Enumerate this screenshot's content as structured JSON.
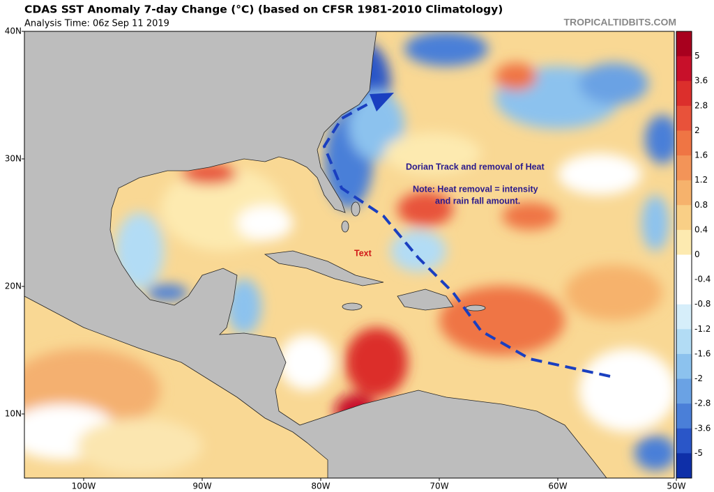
{
  "header": {
    "title": "CDAS SST Anomaly 7-day Change (°C) (based on CFSR 1981-2010 Climatology)",
    "analysis_time": "Analysis Time: 06z Sep 11 2019",
    "source": "TROPICALTIDBITS.COM"
  },
  "map": {
    "lat_labels": [
      "40N",
      "30N",
      "20N",
      "10N"
    ],
    "lon_labels": [
      "100W",
      "90W",
      "80W",
      "70W",
      "60W",
      "50W"
    ],
    "annotations": {
      "track_title": "Dorian Track and removal of Heat",
      "note_line1": "Note: Heat removal = intensity",
      "note_line2": "and rain fall amount.",
      "placeholder": "Text"
    }
  },
  "colorbar": {
    "ticks": [
      5,
      3.6,
      2.8,
      2,
      1.6,
      1.2,
      0.8,
      0.4,
      0,
      -0.4,
      -0.8,
      -1.2,
      -1.6,
      -2,
      -2.8,
      -3.6,
      -5
    ],
    "colors": [
      "#a8001e",
      "#c8102a",
      "#dc2f2c",
      "#e8523a",
      "#ef7544",
      "#f39458",
      "#f6b26c",
      "#f9cf86",
      "#fdeab0",
      "#ffffff",
      "#ffffff",
      "#d6eefa",
      "#b2dcf5",
      "#8cc2ee",
      "#6aa2e4",
      "#4a7fd8",
      "#2a56c8",
      "#0e2fa8"
    ]
  }
}
